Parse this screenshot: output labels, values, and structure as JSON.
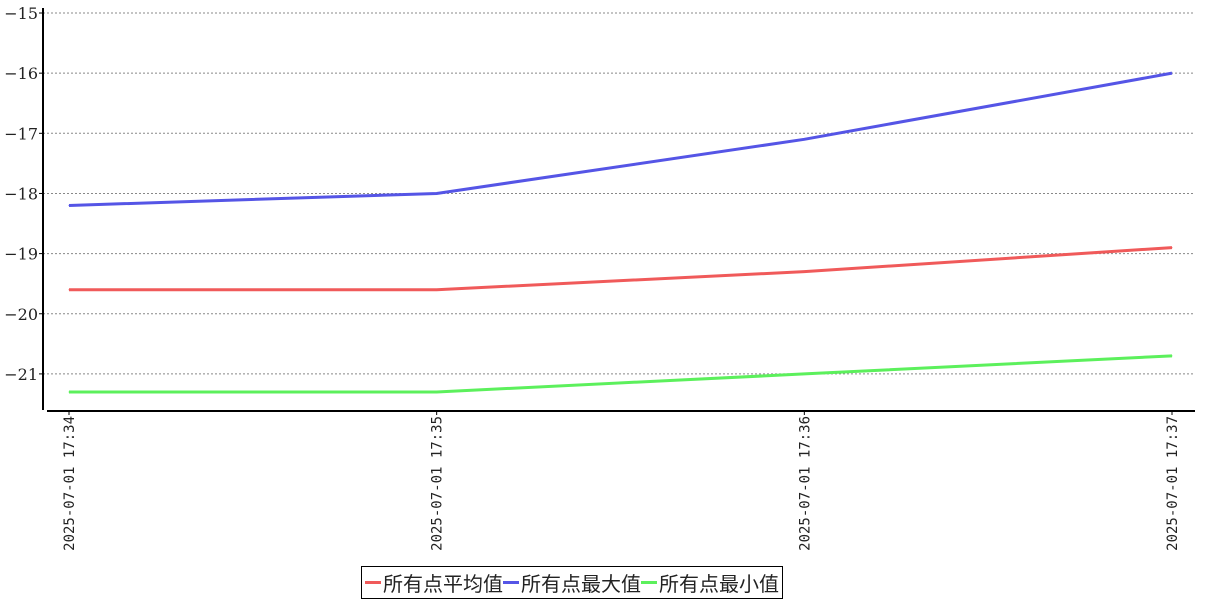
{
  "chart_data": {
    "type": "line",
    "title": "",
    "xlabel": "",
    "ylabel": "",
    "categories": [
      "2025-07-01  17:34",
      "2025-07-01  17:35",
      "2025-07-01  17:36",
      "2025-07-01  17:37"
    ],
    "ylim": [
      -21.6,
      -15
    ],
    "yticks": [
      -15,
      -16,
      -17,
      -18,
      -19,
      -20,
      -21
    ],
    "ytick_labels": [
      "−15",
      "−16",
      "−17",
      "−18",
      "−19",
      "−20",
      "−21"
    ],
    "grid": true,
    "legend_position": "bottom",
    "series": [
      {
        "name": "所有点平均值",
        "color": "#f05a5a",
        "values": [
          -19.6,
          -19.6,
          -19.3,
          -18.9
        ]
      },
      {
        "name": "所有点最大值",
        "color": "#5555e6",
        "values": [
          -18.2,
          -18.0,
          -17.1,
          -16.0
        ]
      },
      {
        "name": "所有点最小值",
        "color": "#5cf05c",
        "values": [
          -21.3,
          -21.3,
          -21.0,
          -20.7
        ]
      }
    ]
  }
}
